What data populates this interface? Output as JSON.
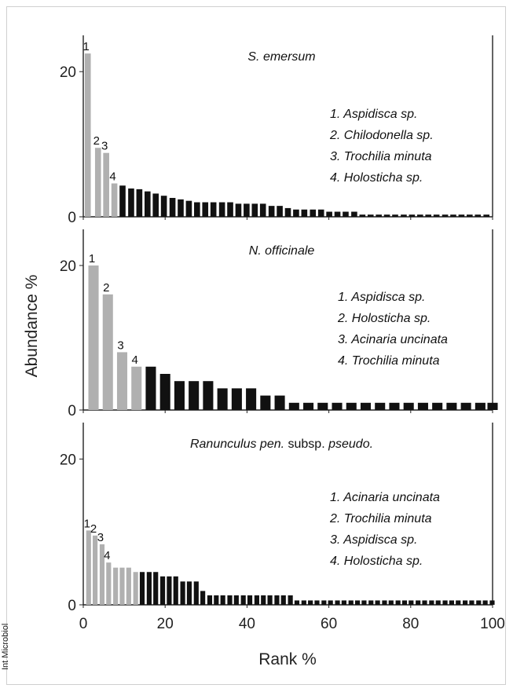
{
  "figure": {
    "side_label": "Int Microbiol",
    "ylabel": "Abundance %",
    "xlabel": "Rank %"
  },
  "chart_data": [
    {
      "type": "bar",
      "title_parts": [
        {
          "text": "S. emersum",
          "italic": true
        }
      ],
      "ylim": [
        0,
        25
      ],
      "yticks": [
        0,
        20
      ],
      "xlim": [
        0,
        100
      ],
      "xticks": [
        0,
        20,
        40,
        60,
        80,
        100
      ],
      "legend": [
        "1. Aspidisca sp.",
        "2. Chilodonella sp.",
        "3. Trochilia minuta",
        "4. Holosticha sp."
      ],
      "legend_placement": "right",
      "highlight_color": "#b0b0b0",
      "other_color": "#111111",
      "rank_labels": [
        "1",
        "2",
        "3",
        "4"
      ],
      "x": [
        1.1,
        3.6,
        5.6,
        7.6,
        9.6,
        11.7,
        13.7,
        15.7,
        17.7,
        19.7,
        21.8,
        23.8,
        25.8,
        27.8,
        29.8,
        31.8,
        33.9,
        35.9,
        37.9,
        39.9,
        41.9,
        43.9,
        46.0,
        48.0,
        50.0,
        52.0,
        54.0,
        56.1,
        58.1,
        60.1,
        62.1,
        64.1,
        66.2,
        68.2,
        70.2,
        72.2,
        74.2,
        76.2,
        78.3,
        80.3,
        82.3,
        84.3,
        86.3,
        88.4,
        90.4,
        92.4,
        94.4,
        96.4,
        98.5
      ],
      "values": [
        22.5,
        9.5,
        8.8,
        4.6,
        4.3,
        3.9,
        3.8,
        3.5,
        3.2,
        2.9,
        2.6,
        2.4,
        2.2,
        2.0,
        2.0,
        2.0,
        2.0,
        2.0,
        1.8,
        1.8,
        1.8,
        1.8,
        1.5,
        1.5,
        1.2,
        1.0,
        1.0,
        1.0,
        1.0,
        0.7,
        0.7,
        0.7,
        0.7,
        0.3,
        0.3,
        0.3,
        0.3,
        0.3,
        0.3,
        0.3,
        0.3,
        0.3,
        0.3,
        0.3,
        0.3,
        0.3,
        0.3,
        0.3,
        0.3
      ],
      "highlight": [
        true,
        true,
        true,
        true,
        false,
        false,
        false,
        false,
        false,
        false,
        false,
        false,
        false,
        false,
        false,
        false,
        false,
        false,
        false,
        false,
        false,
        false,
        false,
        false,
        false,
        false,
        false,
        false,
        false,
        false,
        false,
        false,
        false,
        false,
        false,
        false,
        false,
        false,
        false,
        false,
        false,
        false,
        false,
        false,
        false,
        false,
        false,
        false,
        false
      ],
      "numbered": [
        1,
        2,
        3,
        4,
        0,
        0,
        0,
        0,
        0,
        0,
        0,
        0,
        0,
        0,
        0,
        0,
        0,
        0,
        0,
        0,
        0,
        0,
        0,
        0,
        0,
        0,
        0,
        0,
        0,
        0,
        0,
        0,
        0,
        0,
        0,
        0,
        0,
        0,
        0,
        0,
        0,
        0,
        0,
        0,
        0,
        0,
        0,
        0,
        0
      ]
    },
    {
      "type": "bar",
      "title_parts": [
        {
          "text": "N. officinale",
          "italic": true
        }
      ],
      "ylim": [
        0,
        25
      ],
      "yticks": [
        0,
        20
      ],
      "xlim": [
        0,
        100
      ],
      "xticks": [
        0,
        20,
        40,
        60,
        80,
        100
      ],
      "legend": [
        "1. Aspidisca sp.",
        "2. Holosticha sp.",
        "3. Acinaria uncinata",
        "4. Trochilia minuta"
      ],
      "legend_placement": "right",
      "highlight_color": "#b0b0b0",
      "other_color": "#111111",
      "rank_labels": [
        "1",
        "2",
        "3",
        "4"
      ],
      "x": [
        2.5,
        6.0,
        9.5,
        13.0,
        16.5,
        20.0,
        23.5,
        27.0,
        30.5,
        34.0,
        37.5,
        41.0,
        44.5,
        48.0,
        51.5,
        55.0,
        58.5,
        62.0,
        65.5,
        69.0,
        72.5,
        76.0,
        79.5,
        83.0,
        86.5,
        90.0,
        93.5,
        97.0,
        100.0
      ],
      "values": [
        20.0,
        16.0,
        8.0,
        6.0,
        6.0,
        5.0,
        4.0,
        4.0,
        4.0,
        3.0,
        3.0,
        3.0,
        2.0,
        2.0,
        1.0,
        1.0,
        1.0,
        1.0,
        1.0,
        1.0,
        1.0,
        1.0,
        1.0,
        1.0,
        1.0,
        1.0,
        1.0,
        1.0,
        1.0
      ],
      "highlight": [
        true,
        true,
        true,
        true,
        false,
        false,
        false,
        false,
        false,
        false,
        false,
        false,
        false,
        false,
        false,
        false,
        false,
        false,
        false,
        false,
        false,
        false,
        false,
        false,
        false,
        false,
        false,
        false,
        false
      ],
      "numbered": [
        1,
        2,
        3,
        4,
        0,
        0,
        0,
        0,
        0,
        0,
        0,
        0,
        0,
        0,
        0,
        0,
        0,
        0,
        0,
        0,
        0,
        0,
        0,
        0,
        0,
        0,
        0,
        0,
        0
      ]
    },
    {
      "type": "bar",
      "title_parts": [
        {
          "text": "Ranunculus pen.",
          "italic": true
        },
        {
          "text": " subsp. ",
          "italic": false
        },
        {
          "text": "pseudo.",
          "italic": true
        }
      ],
      "ylim": [
        0,
        25
      ],
      "yticks": [
        0,
        20
      ],
      "xlim": [
        0,
        100
      ],
      "xticks": [
        0,
        20,
        40,
        60,
        80,
        100
      ],
      "legend": [
        "1. Acinaria uncinata",
        "2. Trochilia minuta",
        "3. Aspidisca sp.",
        "4. Holosticha sp."
      ],
      "legend_placement": "right",
      "highlight_color": "#b0b0b0",
      "other_color": "#111111",
      "rank_labels": [
        "1",
        "2",
        "3",
        "4"
      ],
      "x": [
        1.3,
        2.9,
        4.6,
        6.2,
        7.9,
        9.5,
        11.1,
        12.8,
        14.4,
        16.1,
        17.7,
        19.4,
        21.0,
        22.6,
        24.3,
        25.9,
        27.6,
        29.2,
        30.9,
        32.5,
        34.1,
        35.8,
        37.4,
        39.1,
        40.7,
        42.4,
        44.0,
        45.6,
        47.3,
        48.9,
        50.6,
        52.2,
        53.9,
        55.5,
        57.1,
        58.8,
        60.4,
        62.1,
        63.7,
        65.4,
        67.0,
        68.6,
        70.3,
        71.9,
        73.6,
        75.2,
        76.9,
        78.5,
        80.1,
        81.8,
        83.4,
        85.1,
        86.7,
        88.4,
        90.0,
        91.6,
        93.3,
        94.9,
        96.6,
        98.2,
        99.9
      ],
      "values": [
        10.2,
        9.5,
        8.3,
        5.8,
        5.1,
        5.1,
        5.1,
        4.5,
        4.5,
        4.5,
        4.5,
        3.9,
        3.9,
        3.9,
        3.2,
        3.2,
        3.2,
        1.9,
        1.3,
        1.3,
        1.3,
        1.3,
        1.3,
        1.3,
        1.3,
        1.3,
        1.3,
        1.3,
        1.3,
        1.3,
        1.3,
        0.6,
        0.6,
        0.6,
        0.6,
        0.6,
        0.6,
        0.6,
        0.6,
        0.6,
        0.6,
        0.6,
        0.6,
        0.6,
        0.6,
        0.6,
        0.6,
        0.6,
        0.6,
        0.6,
        0.6,
        0.6,
        0.6,
        0.6,
        0.6,
        0.6,
        0.6,
        0.6,
        0.6,
        0.6,
        0.6
      ],
      "highlight": [
        true,
        true,
        true,
        true,
        true,
        true,
        true,
        true,
        false,
        false,
        false,
        false,
        false,
        false,
        false,
        false,
        false,
        false,
        false,
        false,
        false,
        false,
        false,
        false,
        false,
        false,
        false,
        false,
        false,
        false,
        false,
        false,
        false,
        false,
        false,
        false,
        false,
        false,
        false,
        false,
        false,
        false,
        false,
        false,
        false,
        false,
        false,
        false,
        false,
        false,
        false,
        false,
        false,
        false,
        false,
        false,
        false,
        false,
        false,
        false,
        false
      ],
      "numbered": [
        1,
        2,
        3,
        4,
        0,
        0,
        0,
        0,
        0,
        0,
        0,
        0,
        0,
        0,
        0,
        0,
        0,
        0,
        0,
        0,
        0,
        0,
        0,
        0,
        0,
        0,
        0,
        0,
        0,
        0,
        0,
        0,
        0,
        0,
        0,
        0,
        0,
        0,
        0,
        0,
        0,
        0,
        0,
        0,
        0,
        0,
        0,
        0,
        0,
        0,
        0,
        0,
        0,
        0,
        0,
        0,
        0,
        0,
        0,
        0,
        0
      ]
    }
  ]
}
